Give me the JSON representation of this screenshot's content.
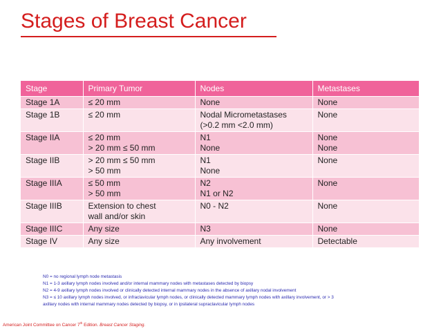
{
  "title": "Stages of Breast Cancer",
  "table": {
    "headers": [
      "Stage",
      "Primary Tumor",
      "Nodes",
      "Metastases"
    ],
    "rows": [
      {
        "stage": [
          "Stage 1A"
        ],
        "tumor": [
          "≤ 20 mm"
        ],
        "nodes": [
          "None"
        ],
        "metastases": [
          "None"
        ]
      },
      {
        "stage": [
          "Stage 1B"
        ],
        "tumor": [
          "≤ 20 mm"
        ],
        "nodes": [
          "Nodal Micrometastases",
          "(>0.2 mm <2.0 mm)"
        ],
        "metastases": [
          "None"
        ]
      },
      {
        "stage": [
          "Stage IIA"
        ],
        "tumor": [
          "≤ 20 mm",
          "> 20 mm ≤ 50 mm"
        ],
        "nodes": [
          "N1",
          "None"
        ],
        "metastases": [
          "None",
          "None"
        ]
      },
      {
        "stage": [
          "Stage IIB"
        ],
        "tumor": [
          "> 20 mm ≤ 50 mm",
          "> 50 mm"
        ],
        "nodes": [
          "N1",
          "None"
        ],
        "metastases": [
          "None"
        ]
      },
      {
        "stage": [
          "Stage IIIA"
        ],
        "tumor": [
          "≤ 50 mm",
          "> 50 mm"
        ],
        "nodes": [
          "N2",
          "N1 or N2"
        ],
        "metastases": [
          "None"
        ]
      },
      {
        "stage": [
          "Stage IIIB"
        ],
        "tumor": [
          "Extension to chest",
          "wall and/or skin"
        ],
        "nodes": [
          "N0 - N2"
        ],
        "metastases": [
          "None"
        ]
      },
      {
        "stage": [
          "Stage IIIC"
        ],
        "tumor": [
          "Any size"
        ],
        "nodes": [
          "N3"
        ],
        "metastases": [
          "None"
        ]
      },
      {
        "stage": [
          "Stage IV"
        ],
        "tumor": [
          "Any size"
        ],
        "nodes": [
          "Any involvement"
        ],
        "metastases": [
          "Detectable"
        ]
      }
    ]
  },
  "notes": [
    "N0 = no regional lymph node metastasis",
    "N1 = 1-3 axillary lymph nodes involved and/or internal mammary nodes with metastases detected by biopsy",
    "N2 = 4-9 axillary lymph nodes involved or clinically detected internal mammary nodes in the absence of axillary nodal involvement",
    "N3 = ≤ 10 axillary lymph nodes involved, or infraclavicular lymph nodes, or clinically detected mammary lymph nodes with axillary involvement, or > 3",
    "axillary nodes with internal mammary nodes detected by biopsy, or in ipsilateral supraclavicular lymph nodes"
  ],
  "citation": {
    "prefix": "American Joint Committee on Cancer 7",
    "superscript": "th",
    "middle": " Edition. ",
    "italic": "Breast Cancer Staging."
  },
  "colors": {
    "title": "#d41d1d",
    "header_bg": "#f0639a",
    "row_odd": "#f7c1d4",
    "row_even": "#fbe2ea",
    "notes_text": "#2b2bb0"
  }
}
